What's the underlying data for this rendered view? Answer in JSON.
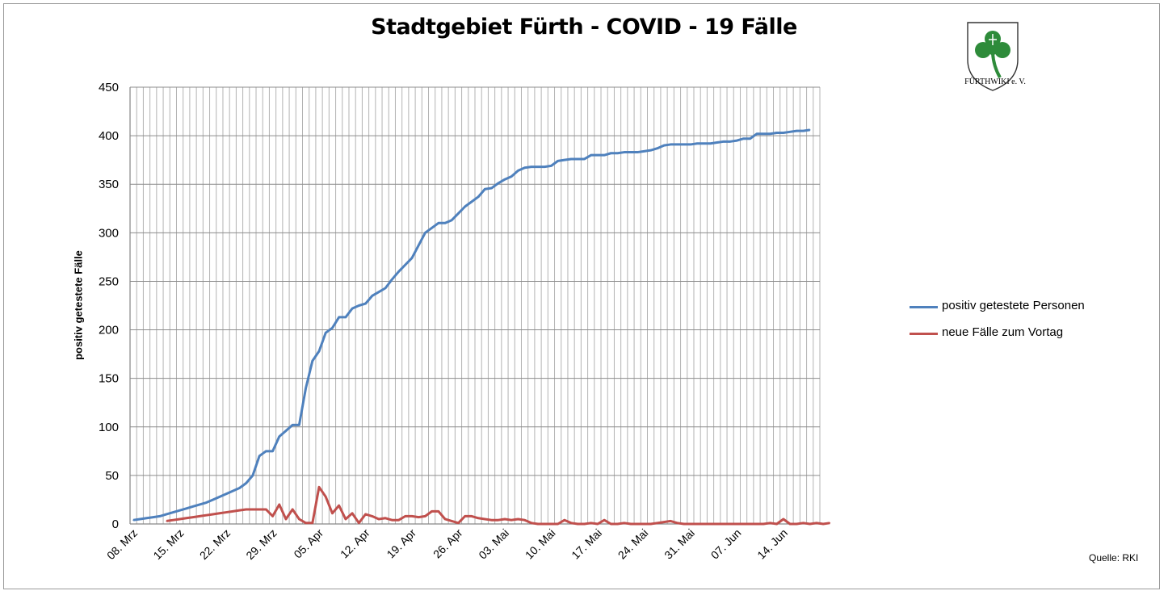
{
  "chart_data": {
    "type": "line",
    "title": "Stadtgebiet Fürth - COVID - 19 Fälle",
    "xlabel": "",
    "ylabel": "positiv getestete Fälle",
    "ylim": [
      0,
      450
    ],
    "yticks": [
      0,
      50,
      100,
      150,
      200,
      250,
      300,
      350,
      400,
      450
    ],
    "x_start": "08. Mrz",
    "x_tick_labels": [
      "08. Mrz",
      "15. Mrz",
      "22. Mrz",
      "29. Mrz",
      "05. Apr",
      "12. Apr",
      "19. Apr",
      "26. Apr",
      "03. Mai",
      "10. Mai",
      "17. Mai",
      "24. Mai",
      "31. Mai",
      "07. Jun",
      "14. Jun"
    ],
    "grid": true,
    "legend_position": "right",
    "series": [
      {
        "name": "positiv getestete Personen",
        "color": "#4f81bd",
        "start_index": 0,
        "values": [
          4,
          5,
          6,
          7,
          8,
          10,
          12,
          14,
          16,
          18,
          20,
          22,
          25,
          28,
          31,
          34,
          37,
          42,
          50,
          70,
          75,
          75,
          90,
          96,
          102,
          102,
          140,
          168,
          178,
          197,
          202,
          213,
          213,
          222,
          225,
          227,
          235,
          239,
          243,
          252,
          260,
          267,
          274,
          287,
          300,
          305,
          310,
          310,
          313,
          320,
          327,
          332,
          337,
          345,
          346,
          351,
          355,
          358,
          364,
          367,
          368,
          368,
          368,
          369,
          374,
          375,
          376,
          376,
          376,
          380,
          380,
          380,
          382,
          382,
          383,
          383,
          383,
          384,
          385,
          387,
          390,
          391,
          391,
          391,
          391,
          392,
          392,
          392,
          393,
          394,
          394,
          395,
          397,
          397,
          402,
          402,
          402,
          403,
          403,
          404,
          405,
          405,
          406
        ]
      },
      {
        "name": "neue Fälle zum Vortag",
        "color": "#c0504d",
        "start_index": 5,
        "values": [
          3,
          4,
          5,
          6,
          7,
          8,
          9,
          10,
          11,
          12,
          13,
          14,
          15,
          15,
          15,
          15,
          8,
          20,
          5,
          15,
          5,
          1,
          1,
          38,
          28,
          11,
          19,
          5,
          11,
          1,
          10,
          8,
          5,
          6,
          4,
          4,
          8,
          8,
          7,
          8,
          13,
          13,
          5,
          3,
          1,
          8,
          8,
          6,
          5,
          4,
          4,
          5,
          4,
          5,
          4,
          1,
          0,
          0,
          0,
          0,
          4,
          1,
          0,
          0,
          1,
          0,
          4,
          0,
          0,
          1,
          0,
          0,
          0,
          0,
          1,
          2,
          3,
          1,
          0,
          0,
          0,
          0,
          0,
          0,
          0,
          0,
          0,
          0,
          0,
          0,
          0,
          1,
          0,
          5,
          0,
          0,
          1,
          0,
          1,
          0,
          1
        ]
      }
    ]
  },
  "legend": [
    {
      "label": "positiv getestete Personen",
      "color": "#4f81bd"
    },
    {
      "label": "neue Fälle zum Vortag",
      "color": "#c0504d"
    }
  ],
  "source_label": "Quelle: RKI",
  "logo": {
    "caption": "FÜRTHWIKI e. V.",
    "icon": "cloverleaf-coat-of-arms",
    "shield_color": "#ffffff",
    "leaf_color": "#2e8b3a"
  }
}
